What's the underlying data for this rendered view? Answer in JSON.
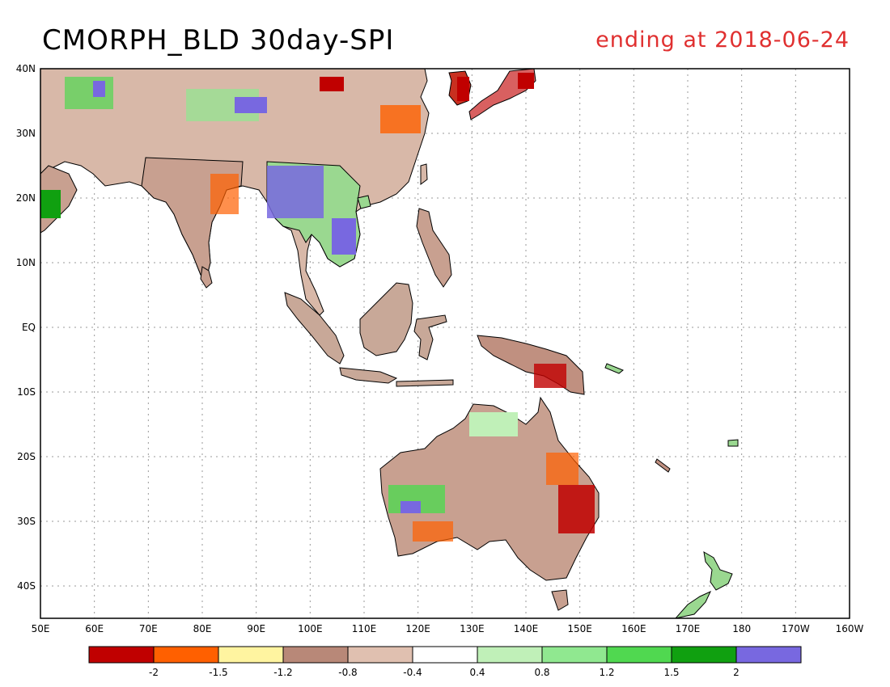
{
  "title": "CMORPH_BLD 30day-SPI",
  "subtitle": "ending at 2018-06-24",
  "subtitle_color": "#e03030",
  "map": {
    "lon_range": [
      50,
      200
    ],
    "lat_range": [
      -45,
      40
    ],
    "x_ticks": [
      "50E",
      "60E",
      "70E",
      "80E",
      "90E",
      "100E",
      "110E",
      "120E",
      "130E",
      "140E",
      "150E",
      "160E",
      "170E",
      "180",
      "170W",
      "160W"
    ],
    "y_ticks": [
      "40N",
      "30N",
      "20N",
      "10N",
      "EQ",
      "10S",
      "20S",
      "30S",
      "40S"
    ],
    "land_regions": [
      {
        "name": "asia-mainland",
        "color": "#d8b8a8"
      },
      {
        "name": "india",
        "color": "#c8a090"
      },
      {
        "name": "indochina",
        "color": "#9ad890"
      },
      {
        "name": "borneo",
        "color": "#c8a898"
      },
      {
        "name": "sumatra",
        "color": "#c8a898"
      },
      {
        "name": "new-guinea",
        "color": "#c09080"
      },
      {
        "name": "australia",
        "color": "#c8a090"
      },
      {
        "name": "new-zealand",
        "color": "#9ad890"
      },
      {
        "name": "japan",
        "color": "#d86060"
      },
      {
        "name": "korea",
        "color": "#c83020"
      }
    ]
  },
  "colorbar": {
    "colors": [
      "#c00000",
      "#ff6000",
      "#fff4a0",
      "#b88878",
      "#e0c0b0",
      "#ffffff",
      "#c0f0b8",
      "#90e890",
      "#50d850",
      "#10a010",
      "#7868e0"
    ],
    "labels": [
      "-2",
      "-1.5",
      "-1.2",
      "-0.8",
      "-0.4",
      "0.4",
      "0.8",
      "1.2",
      "1.5",
      "2"
    ]
  }
}
